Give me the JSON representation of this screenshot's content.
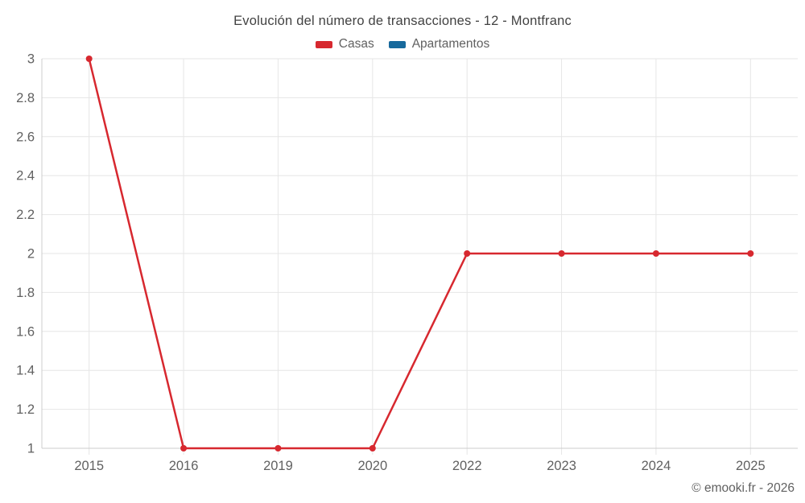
{
  "title": "Evolución del número de transacciones - 12 - Montfranc",
  "footer": "© emooki.fr - 2026",
  "colors": {
    "casas": "#d7282f",
    "apartamentos": "#17699c",
    "grid": "#e6e6e6",
    "axis": "#cccccc",
    "title_text": "#424242",
    "label_text": "#616161"
  },
  "chart_data": {
    "type": "line",
    "title": "Evolución del número de transacciones - 12 - Montfranc",
    "categories": [
      "2015",
      "2016",
      "2019",
      "2020",
      "2022",
      "2023",
      "2024",
      "2025"
    ],
    "series": [
      {
        "name": "Casas",
        "color": "#d7282f",
        "values": [
          3,
          1,
          1,
          1,
          2,
          2,
          2,
          2
        ]
      },
      {
        "name": "Apartamentos",
        "color": "#17699c",
        "values": []
      }
    ],
    "xlabel": "",
    "ylabel": "",
    "ylim": [
      1,
      3
    ],
    "ytick_step": 0.2,
    "ytick_labels": [
      "1",
      "1.2",
      "1.4",
      "1.6",
      "1.8",
      "2",
      "2.2",
      "2.4",
      "2.6",
      "2.8",
      "3"
    ],
    "grid": true,
    "legend_position": "top",
    "markers": true
  }
}
